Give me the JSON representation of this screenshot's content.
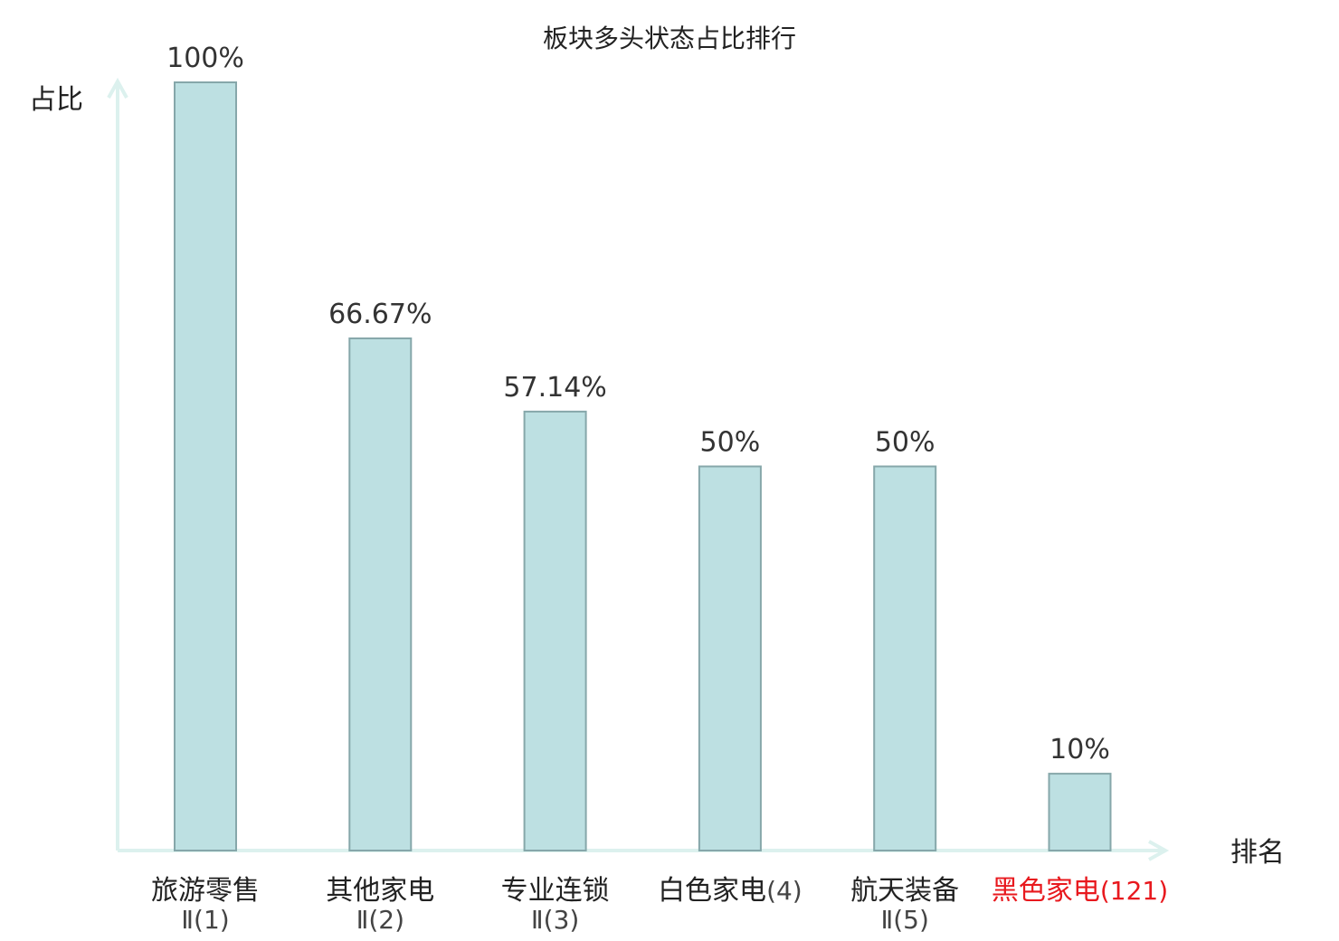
{
  "chart_data": {
    "type": "bar",
    "title": "板块多头状态占比排行",
    "ylabel": "占比",
    "xlabel": "排名",
    "ylim": [
      0,
      100
    ],
    "grid": false,
    "categories": [
      {
        "name": "旅游零售",
        "rank": "Ⅱ(1)",
        "highlight": false
      },
      {
        "name": "其他家电",
        "rank": "Ⅱ(2)",
        "highlight": false
      },
      {
        "name": "专业连锁",
        "rank": "Ⅱ(3)",
        "highlight": false
      },
      {
        "name": "白色家电",
        "rank": "(4)",
        "highlight": false
      },
      {
        "name": "航天装备",
        "rank": "Ⅱ(5)",
        "highlight": false
      },
      {
        "name": "黑色家电",
        "rank": "(121)",
        "highlight": true
      }
    ],
    "values": [
      100,
      66.67,
      57.14,
      50,
      50,
      10
    ],
    "value_labels": [
      "100%",
      "66.67%",
      "57.14%",
      "50%",
      "50%",
      "10%"
    ]
  },
  "colors": {
    "bar_fill": "#bde0e2",
    "bar_stroke": "#86a7aa",
    "axis": "#dcf1ee",
    "highlight": "#e8191e",
    "text": "#222222",
    "rank_text": "#444444"
  }
}
